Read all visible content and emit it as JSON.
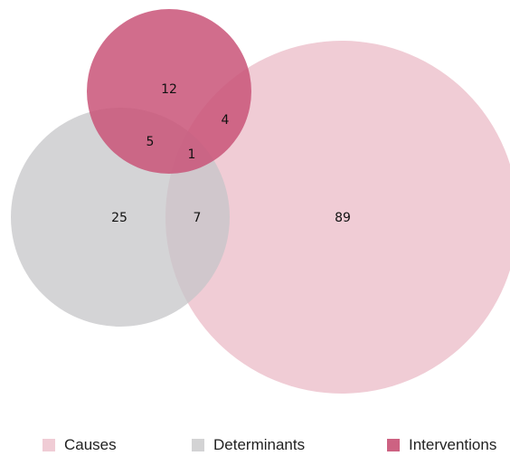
{
  "sets": [
    {
      "id": "causes",
      "name": "Causes",
      "color": "#f0ccd5",
      "only": "89"
    },
    {
      "id": "determinants",
      "name": "Determinants",
      "color": "#d3d3d4",
      "only": "25"
    },
    {
      "id": "interventions",
      "name": "Interventions",
      "color": "#cd6282",
      "only": "12"
    }
  ],
  "intersections": {
    "determinants_interventions": "5",
    "causes_interventions": "4",
    "causes_determinants": "7",
    "all_three": "1"
  },
  "legend": [
    "Causes",
    "Determinants",
    "Interventions"
  ]
}
